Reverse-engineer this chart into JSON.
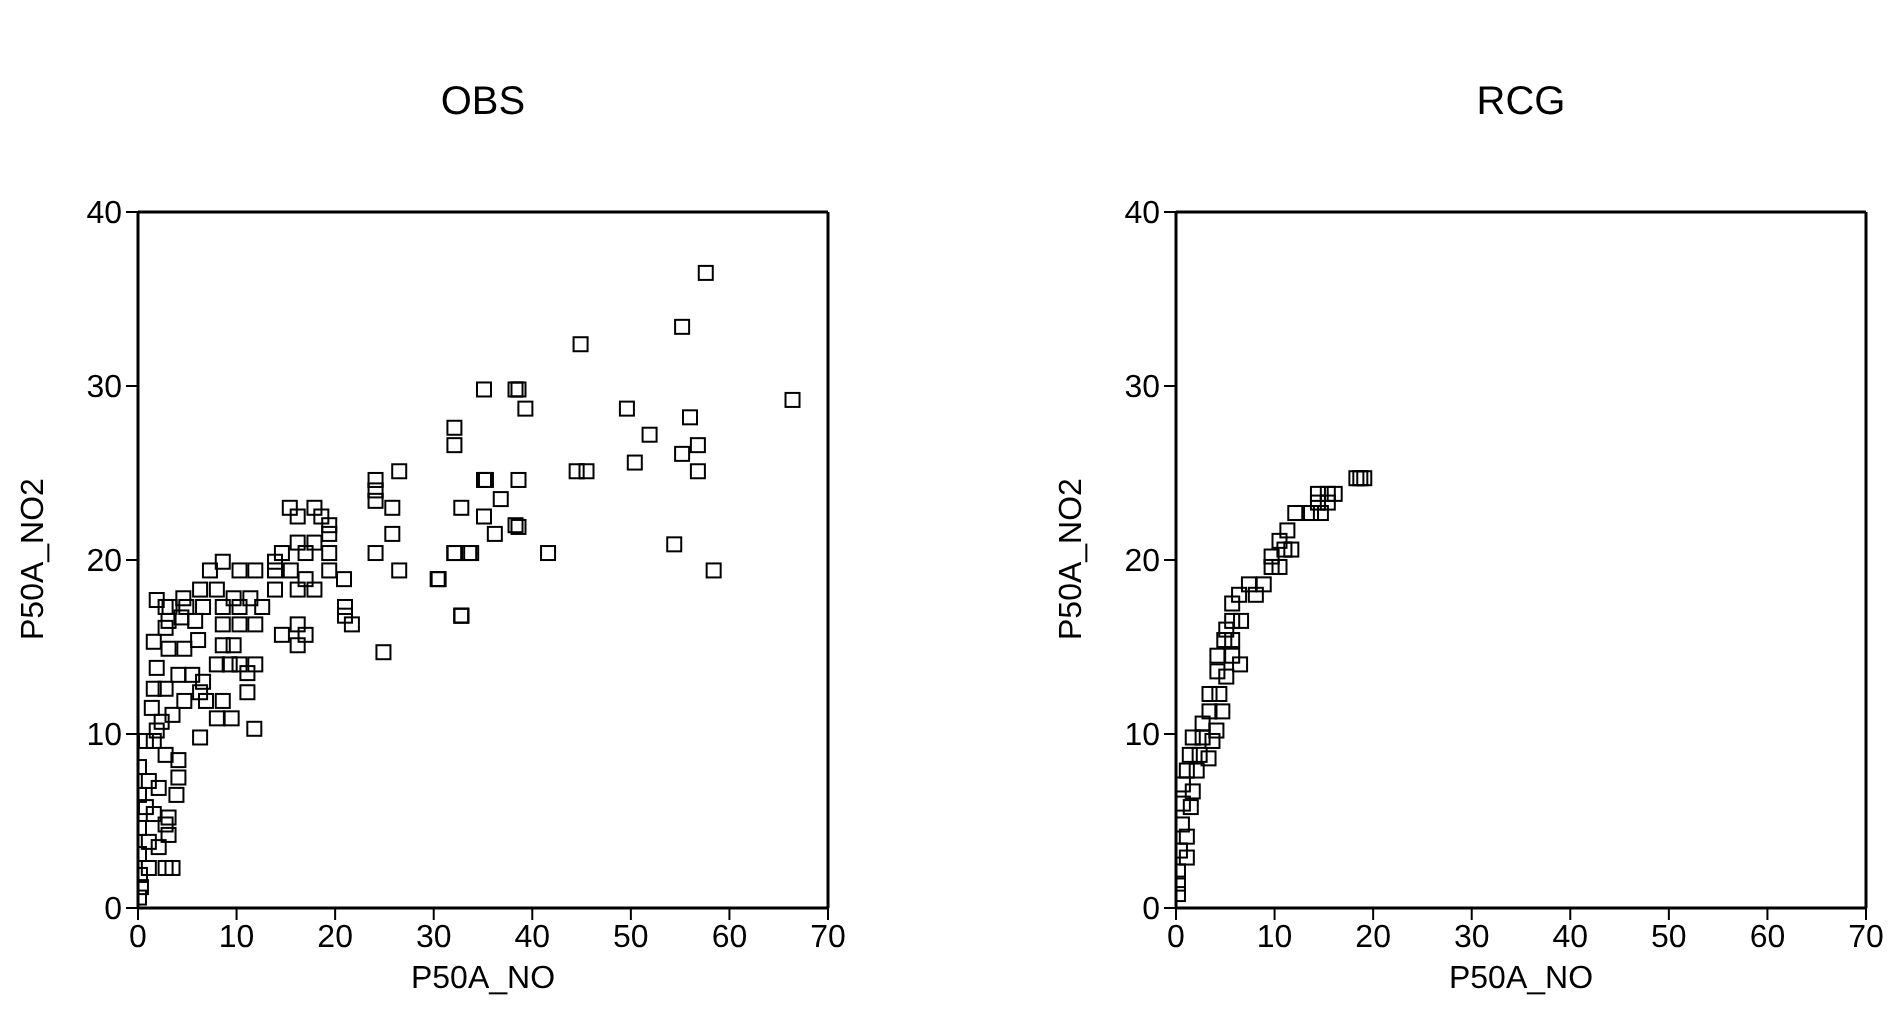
{
  "chart_data": [
    {
      "type": "scatter",
      "title": "OBS",
      "xlabel": "P50A_NO",
      "ylabel": "P50A_NO2",
      "marker": "square",
      "xlim": [
        0,
        70
      ],
      "ylim": [
        0,
        40
      ],
      "xticks": [
        0,
        10,
        20,
        30,
        40,
        50,
        60,
        70
      ],
      "yticks": [
        0,
        10,
        20,
        30,
        40
      ],
      "series": [
        {
          "color": "#000000",
          "x": [
            35.1,
            38.3,
            32.1,
            32.1,
            26.5,
            24.1,
            24.1,
            24.1,
            25.8,
            32.8,
            35.1,
            36.8,
            35.1,
            36.2,
            38.3,
            25.8,
            24.1,
            26.5,
            32.1,
            33.8,
            30.5,
            32.8,
            24.9,
            21.0,
            21.0,
            21.7,
            20.9,
            19.4,
            19.4,
            19.4,
            19.4,
            18.6,
            17.9,
            15.4,
            16.2,
            16.2,
            17.9,
            14.6,
            17.0,
            13.9,
            13.9,
            15.5,
            8.6,
            7.3,
            10.3,
            11.9,
            6.3,
            8.0,
            13.9,
            16.2,
            17.9,
            17.0,
            9.7,
            11.4,
            4.6,
            8.6,
            10.3,
            12.6,
            6.6,
            3.2,
            4.9,
            11.9,
            10.3,
            8.6,
            14.6,
            16.2,
            17.0,
            16.2,
            8.6,
            9.7,
            8.0,
            9.3,
            10.3,
            11.9,
            11.1,
            11.1,
            6.6,
            6.3,
            8.6,
            6.9,
            8.0,
            9.5,
            11.8,
            6.3,
            3.1,
            2.8,
            2.8,
            3.1,
            1.9,
            1.6,
            2.8,
            4.1,
            4.7,
            5.5,
            1.4,
            2.4,
            3.5,
            0.8,
            1.6,
            2.8,
            4.1,
            4.1,
            0.1,
            1.1,
            2.1,
            0.1,
            0.8,
            1.6,
            2.8,
            0.1,
            1.1,
            2.1,
            0.1,
            2.8,
            3.5,
            1.1,
            0.2,
            0.3,
            0.1,
            1.9,
            3.1,
            1.6,
            4.4,
            5.8,
            6.1,
            4.7,
            1.9,
            3.9,
            3.1,
            57.6,
            55.2,
            44.9,
            38.6,
            39.3,
            66.4,
            49.6,
            56.0,
            51.9,
            56.8,
            55.2,
            50.4,
            44.5,
            45.5,
            56.8,
            35.3,
            38.6,
            38.6,
            41.6,
            54.4,
            58.4,
            32.1,
            33.6,
            30.4,
            32.8
          ],
          "values": [
            29.8,
            29.8,
            27.6,
            26.6,
            25.1,
            24.6,
            24.0,
            23.4,
            23.0,
            23.0,
            24.6,
            23.5,
            22.5,
            21.5,
            22.0,
            21.5,
            20.4,
            19.4,
            20.4,
            20.4,
            18.9,
            16.8,
            14.7,
            17.3,
            16.8,
            16.3,
            18.9,
            19.4,
            20.4,
            21.5,
            22.0,
            22.5,
            23.0,
            23.0,
            22.5,
            21.0,
            21.0,
            20.4,
            20.4,
            19.9,
            19.4,
            19.4,
            19.9,
            19.4,
            19.4,
            19.4,
            18.3,
            18.3,
            18.3,
            18.3,
            18.3,
            18.9,
            17.8,
            17.8,
            17.8,
            17.3,
            17.3,
            17.3,
            17.3,
            17.3,
            17.3,
            16.3,
            16.3,
            16.3,
            15.7,
            16.3,
            15.7,
            15.1,
            15.1,
            15.1,
            14.0,
            14.0,
            14.0,
            14.0,
            13.5,
            12.4,
            13.0,
            12.4,
            11.9,
            11.9,
            10.9,
            10.9,
            10.3,
            9.8,
            5.2,
            17.3,
            16.1,
            14.9,
            13.8,
            12.6,
            12.6,
            13.4,
            14.9,
            13.4,
            11.5,
            10.7,
            11.1,
            9.6,
            9.6,
            8.8,
            8.5,
            7.5,
            8.1,
            7.3,
            6.9,
            6.5,
            5.8,
            5.4,
            4.8,
            4.6,
            3.8,
            3.5,
            3.1,
            2.3,
            2.3,
            2.3,
            1.9,
            1.2,
            0.6,
            17.7,
            16.5,
            15.3,
            16.7,
            16.5,
            15.4,
            11.9,
            10.2,
            6.5,
            4.2,
            36.5,
            33.4,
            32.4,
            29.8,
            28.7,
            29.2,
            28.7,
            28.2,
            27.2,
            26.6,
            26.1,
            25.6,
            25.1,
            25.1,
            25.1,
            24.6,
            24.6,
            21.9,
            20.4,
            20.9,
            19.4,
            20.4,
            20.4,
            18.9,
            16.8
          ]
        }
      ]
    },
    {
      "type": "scatter",
      "title": "RCG",
      "xlabel": "P50A_NO",
      "ylabel": "P50A_NO2",
      "marker": "square",
      "xlim": [
        0,
        70
      ],
      "ylim": [
        0,
        40
      ],
      "xticks": [
        0,
        10,
        20,
        30,
        40,
        50,
        60,
        70
      ],
      "yticks": [
        0,
        10,
        20,
        30,
        40
      ],
      "series": [
        {
          "color": "#000000",
          "x": [
            18.3,
            18.7,
            19.1,
            14.4,
            15.4,
            16.1,
            14.4,
            15.4,
            12.1,
            13.7,
            14.7,
            11.3,
            10.5,
            11.7,
            11.0,
            9.7,
            9.7,
            10.5,
            7.4,
            8.9,
            8.1,
            6.4,
            5.7,
            5.7,
            6.6,
            5.1,
            4.9,
            5.7,
            4.2,
            5.7,
            6.5,
            4.2,
            5.1,
            3.4,
            4.4,
            3.4,
            4.7,
            2.7,
            4.1,
            1.7,
            2.7,
            3.7,
            1.4,
            2.4,
            3.3,
            1.1,
            2.1,
            0.7,
            1.7,
            0.7,
            1.5,
            0.6,
            1.1,
            0.4,
            1.1,
            0.2,
            0.2,
            0.2
          ],
          "values": [
            24.7,
            24.7,
            24.7,
            23.8,
            23.8,
            23.8,
            23.3,
            23.3,
            22.7,
            22.7,
            22.7,
            21.7,
            21.1,
            20.6,
            20.6,
            20.2,
            19.6,
            19.6,
            18.6,
            18.6,
            18.0,
            18.0,
            17.5,
            16.5,
            16.5,
            16.0,
            15.4,
            15.4,
            14.5,
            14.5,
            14.0,
            13.6,
            13.3,
            12.3,
            12.3,
            11.3,
            11.3,
            10.6,
            10.2,
            9.8,
            9.8,
            9.6,
            8.8,
            8.8,
            8.6,
            7.9,
            7.9,
            7.1,
            6.7,
            6.0,
            5.8,
            4.8,
            4.1,
            3.3,
            2.9,
            2.1,
            1.4,
            0.8
          ]
        }
      ]
    }
  ]
}
